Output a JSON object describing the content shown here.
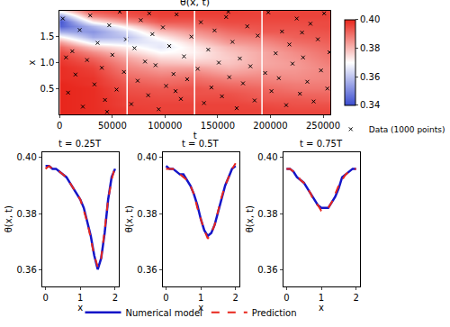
{
  "chart_data": [
    {
      "type": "heatmap",
      "title": "θ(x, t)",
      "x_label": "t",
      "y_label": "x",
      "t": [
        0,
        32000,
        64000,
        96000,
        128000,
        160000,
        192000,
        224000,
        256000
      ],
      "x": [
        0,
        0.1,
        0.2,
        0.3,
        0.4,
        0.5,
        0.6,
        0.7,
        0.8,
        0.9,
        1.0,
        1.1,
        1.2,
        1.3,
        1.4,
        1.5,
        1.6,
        1.7,
        1.8,
        1.9,
        2.0
      ],
      "cells": [
        [
          0.4,
          0.4,
          0.4,
          0.4,
          0.4,
          0.4,
          0.4,
          0.399,
          0.399,
          0.399,
          0.398,
          0.397,
          0.395,
          0.391,
          0.384,
          0.372,
          0.356,
          0.343,
          0.341,
          0.352,
          0.372
        ],
        [
          0.399,
          0.399,
          0.399,
          0.399,
          0.399,
          0.399,
          0.398,
          0.398,
          0.397,
          0.396,
          0.394,
          0.391,
          0.386,
          0.378,
          0.367,
          0.356,
          0.352,
          0.358,
          0.372,
          0.386,
          0.394
        ],
        [
          0.397,
          0.397,
          0.396,
          0.396,
          0.395,
          0.394,
          0.393,
          0.391,
          0.389,
          0.387,
          0.385,
          0.382,
          0.377,
          0.372,
          0.365,
          0.36,
          0.364,
          0.373,
          0.385,
          0.393,
          0.396
        ],
        [
          0.397,
          0.396,
          0.396,
          0.395,
          0.394,
          0.393,
          0.391,
          0.389,
          0.386,
          0.383,
          0.379,
          0.375,
          0.37,
          0.366,
          0.367,
          0.372,
          0.379,
          0.387,
          0.393,
          0.396,
          0.397
        ],
        [
          0.397,
          0.396,
          0.396,
          0.395,
          0.394,
          0.394,
          0.392,
          0.39,
          0.387,
          0.383,
          0.378,
          0.374,
          0.372,
          0.373,
          0.376,
          0.381,
          0.385,
          0.39,
          0.393,
          0.396,
          0.397
        ],
        [
          0.397,
          0.396,
          0.396,
          0.395,
          0.394,
          0.392,
          0.39,
          0.387,
          0.383,
          0.38,
          0.378,
          0.377,
          0.378,
          0.38,
          0.384,
          0.387,
          0.39,
          0.393,
          0.395,
          0.396,
          0.397
        ],
        [
          0.396,
          0.396,
          0.395,
          0.393,
          0.392,
          0.391,
          0.389,
          0.387,
          0.385,
          0.383,
          0.382,
          0.382,
          0.382,
          0.384,
          0.386,
          0.389,
          0.393,
          0.394,
          0.395,
          0.396,
          0.396
        ],
        [
          0.396,
          0.395,
          0.394,
          0.393,
          0.391,
          0.389,
          0.388,
          0.386,
          0.385,
          0.384,
          0.384,
          0.385,
          0.386,
          0.388,
          0.39,
          0.392,
          0.393,
          0.394,
          0.395,
          0.396,
          0.396
        ],
        [
          0.396,
          0.395,
          0.394,
          0.392,
          0.391,
          0.389,
          0.388,
          0.387,
          0.387,
          0.387,
          0.388,
          0.389,
          0.39,
          0.391,
          0.392,
          0.393,
          0.394,
          0.395,
          0.395,
          0.396,
          0.396
        ]
      ],
      "colors": [
        "#3a4ccf",
        "#ffffff",
        "#e8261c"
      ],
      "color_range": [
        0.34,
        0.4
      ],
      "color_ticks": [
        0.34,
        0.36,
        0.38,
        {
          "value": 0.4,
          "label": "0.40"
        }
      ],
      "xlim": [
        0,
        257000
      ],
      "xticks": [
        0,
        50000,
        100000,
        150000,
        200000,
        250000
      ],
      "ylim": [
        0,
        2
      ],
      "yticks": [
        0.5,
        {
          "value": 1.0,
          "label": "1.0"
        },
        1.5
      ],
      "vlines": [
        64000,
        128000,
        192000
      ],
      "scatter": {
        "name": "Data (1000 points)",
        "color": "#000000",
        "marker": "x",
        "t": [
          3000,
          8000,
          12000,
          15000,
          19000,
          22000,
          26000,
          29000,
          33000,
          36000,
          40000,
          43000,
          47000,
          50000,
          54000,
          57000,
          61000,
          63000,
          68000,
          71000,
          74000,
          77000,
          81000,
          84000,
          88000,
          91000,
          94000,
          98000,
          101000,
          104000,
          108000,
          111000,
          115000,
          118000,
          121000,
          125000,
          131000,
          134000,
          137000,
          141000,
          144000,
          147000,
          151000,
          154000,
          158000,
          161000,
          164000,
          168000,
          171000,
          174000,
          178000,
          181000,
          185000,
          188000,
          195000,
          198000,
          201000,
          205000,
          208000,
          211000,
          215000,
          218000,
          221000,
          225000,
          228000,
          231000,
          235000,
          238000,
          241000,
          245000,
          248000,
          251000,
          254000,
          256000,
          6000,
          45000,
          110000,
          160000,
          230000,
          85000
        ],
        "x": [
          1.85,
          0.42,
          1.22,
          0.77,
          1.63,
          0.15,
          1.05,
          1.91,
          0.58,
          1.38,
          0.9,
          0.28,
          1.72,
          1.15,
          0.48,
          1.98,
          0.82,
          1.45,
          0.2,
          1.28,
          0.65,
          1.82,
          1.02,
          0.37,
          1.55,
          0.95,
          0.1,
          1.68,
          0.55,
          1.32,
          0.78,
          1.93,
          0.3,
          1.12,
          0.68,
          1.5,
          0.88,
          1.78,
          0.22,
          1.25,
          0.52,
          1.62,
          1.0,
          0.35,
          1.88,
          0.72,
          1.4,
          0.12,
          1.08,
          0.6,
          1.7,
          0.93,
          0.27,
          1.52,
          0.8,
          1.97,
          0.45,
          1.18,
          0.7,
          1.6,
          0.18,
          1.35,
          0.98,
          1.85,
          0.4,
          1.1,
          0.63,
          1.75,
          0.25,
          1.45,
          0.85,
          1.95,
          0.5,
          1.2,
          1.1,
          0.05,
          0.45,
          1.98,
          1.58,
          1.95
        ]
      }
    },
    {
      "type": "line",
      "title": "t = 0.25T",
      "x_label": "x",
      "y_label": "θ(x, t)",
      "x": [
        0,
        0.1,
        0.2,
        0.3,
        0.4,
        0.5,
        0.6,
        0.7,
        0.8,
        0.9,
        1.0,
        1.1,
        1.2,
        1.3,
        1.4,
        1.5,
        1.6,
        1.7,
        1.8,
        1.9,
        2.0
      ],
      "xlim": [
        -0.1,
        2.1
      ],
      "xticks": [
        0,
        1,
        2
      ],
      "ylim": [
        0.354,
        0.402
      ],
      "yticks": [
        0.36,
        0.38,
        {
          "value": 0.4,
          "label": "0.40"
        }
      ],
      "series": [
        {
          "name": "Numerical model",
          "color": "#1515c8",
          "line_style": "solid",
          "values": [
            0.397,
            0.397,
            0.396,
            0.396,
            0.395,
            0.394,
            0.393,
            0.391,
            0.389,
            0.387,
            0.385,
            0.382,
            0.377,
            0.372,
            0.365,
            0.36,
            0.364,
            0.373,
            0.385,
            0.393,
            0.396
          ]
        },
        {
          "name": "Prediction",
          "color": "#e8261c",
          "line_style": "dashed",
          "values": [
            0.396,
            0.397,
            0.396,
            0.396,
            0.395,
            0.394,
            0.393,
            0.391,
            0.389,
            0.387,
            0.385,
            0.381,
            0.377,
            0.371,
            0.365,
            0.361,
            0.364,
            0.374,
            0.385,
            0.392,
            0.397
          ]
        }
      ]
    },
    {
      "type": "line",
      "title": "t = 0.5T",
      "x_label": "x",
      "y_label": "θ(x, t)",
      "x": [
        0,
        0.1,
        0.2,
        0.3,
        0.4,
        0.5,
        0.6,
        0.7,
        0.8,
        0.9,
        1.0,
        1.1,
        1.2,
        1.3,
        1.4,
        1.5,
        1.6,
        1.7,
        1.8,
        1.9,
        2.0
      ],
      "xlim": [
        -0.1,
        2.1
      ],
      "xticks": [
        0,
        1,
        2
      ],
      "ylim": [
        0.354,
        0.402
      ],
      "yticks": [
        0.36,
        0.38,
        {
          "value": 0.4,
          "label": "0.40"
        }
      ],
      "series": [
        {
          "name": "Numerical model",
          "color": "#1515c8",
          "line_style": "solid",
          "values": [
            0.397,
            0.396,
            0.396,
            0.395,
            0.394,
            0.394,
            0.392,
            0.39,
            0.387,
            0.383,
            0.378,
            0.374,
            0.372,
            0.373,
            0.376,
            0.381,
            0.385,
            0.39,
            0.393,
            0.396,
            0.397
          ]
        },
        {
          "name": "Prediction",
          "color": "#e8261c",
          "line_style": "dashed",
          "values": [
            0.396,
            0.396,
            0.396,
            0.395,
            0.394,
            0.393,
            0.392,
            0.39,
            0.387,
            0.382,
            0.378,
            0.374,
            0.371,
            0.373,
            0.376,
            0.381,
            0.386,
            0.39,
            0.393,
            0.396,
            0.398
          ]
        }
      ]
    },
    {
      "type": "line",
      "title": "t = 0.75T",
      "x_label": "x",
      "y_label": "θ(x, t)",
      "x": [
        0,
        0.1,
        0.2,
        0.3,
        0.4,
        0.5,
        0.6,
        0.7,
        0.8,
        0.9,
        1.0,
        1.1,
        1.2,
        1.3,
        1.4,
        1.5,
        1.6,
        1.7,
        1.8,
        1.9,
        2.0
      ],
      "xlim": [
        -0.1,
        2.1
      ],
      "xticks": [
        0,
        1,
        2
      ],
      "ylim": [
        0.354,
        0.402
      ],
      "yticks": [
        0.36,
        0.38,
        {
          "value": 0.4,
          "label": "0.40"
        }
      ],
      "series": [
        {
          "name": "Numerical model",
          "color": "#1515c8",
          "line_style": "solid",
          "values": [
            0.396,
            0.396,
            0.395,
            0.393,
            0.392,
            0.391,
            0.389,
            0.387,
            0.385,
            0.383,
            0.382,
            0.382,
            0.382,
            0.384,
            0.386,
            0.389,
            0.393,
            0.394,
            0.395,
            0.396,
            0.396
          ]
        },
        {
          "name": "Prediction",
          "color": "#e8261c",
          "line_style": "dashed",
          "values": [
            0.396,
            0.396,
            0.395,
            0.394,
            0.392,
            0.391,
            0.389,
            0.387,
            0.384,
            0.383,
            0.381,
            0.381,
            0.382,
            0.384,
            0.387,
            0.39,
            0.392,
            0.394,
            0.395,
            0.396,
            0.396
          ]
        }
      ]
    }
  ]
}
